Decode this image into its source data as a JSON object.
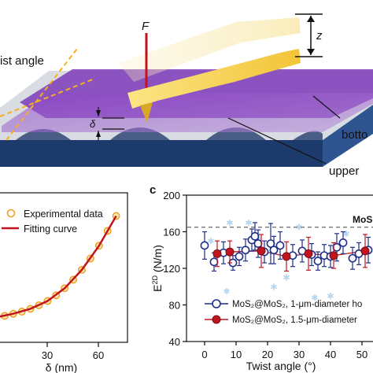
{
  "schematic": {
    "force_label": "F",
    "z_label": "z",
    "delta_label": "δ",
    "twist_label": "ist angle",
    "bottom_label": "botto",
    "upper_label": "upper"
  },
  "panel_b": {
    "legend": [
      "Experimental data",
      "Fitting curve"
    ],
    "xlabel": "δ (nm)",
    "x_ticks": [
      "30",
      "60"
    ]
  },
  "panel_c": {
    "panel_letter": "c",
    "ylabel_main": "E",
    "ylabel_sup": "2D",
    "ylabel_unit": " (N/m)",
    "xlabel": "Twist angle (°)",
    "y_ticks": [
      "200",
      "160",
      "120",
      "80",
      "40"
    ],
    "x_ticks": [
      "0",
      "10",
      "20",
      "30",
      "40",
      "50"
    ],
    "ref_label": "MoS",
    "legend_1": "MoS₂@MoS₂, 1-μm-diameter ho",
    "legend_2": "MoS₂@MoS₂, 1.5-μm-diameter"
  },
  "chart_data": [
    {
      "type": "scatter",
      "title": "",
      "xlabel": "δ (nm)",
      "ylabel": "",
      "x_ticks": [
        30,
        60
      ],
      "series": [
        {
          "name": "Experimental data",
          "x": [
            0,
            5,
            10,
            15,
            20,
            25,
            30,
            35,
            40,
            45,
            50,
            55,
            60,
            65,
            70
          ],
          "y": [
            0.02,
            0.04,
            0.07,
            0.1,
            0.14,
            0.19,
            0.25,
            0.33,
            0.43,
            0.55,
            0.69,
            0.85,
            1.03,
            1.24,
            1.45
          ]
        },
        {
          "name": "Fitting curve",
          "x": [
            0,
            10,
            20,
            30,
            40,
            50,
            60,
            70
          ],
          "y": [
            0.02,
            0.07,
            0.14,
            0.25,
            0.43,
            0.69,
            1.03,
            1.45
          ]
        }
      ]
    },
    {
      "type": "scatter",
      "title": "",
      "xlabel": "Twist angle (°)",
      "ylabel": "E2D (N/m)",
      "ylim": [
        40,
        200
      ],
      "y_ticks": [
        40,
        80,
        120,
        160,
        200
      ],
      "x_ticks": [
        0,
        10,
        20,
        30,
        40,
        50
      ],
      "reference_line": 165,
      "series": [
        {
          "name": "MoS2@MoS2, 1-μm-diameter ho",
          "x": [
            0,
            3,
            6,
            9,
            11,
            13,
            15,
            16,
            17,
            19,
            21,
            22,
            24,
            28,
            31,
            34,
            36,
            38,
            40,
            42,
            44,
            47,
            49,
            52
          ],
          "y": [
            145,
            127,
            137,
            126,
            133,
            140,
            151,
            155,
            147,
            138,
            147,
            140,
            145,
            134,
            139,
            135,
            128,
            134,
            133,
            143,
            148,
            131,
            136,
            140
          ],
          "err": [
            15,
            10,
            12,
            8,
            10,
            12,
            12,
            15,
            15,
            12,
            22,
            15,
            15,
            12,
            12,
            12,
            10,
            12,
            12,
            15,
            12,
            12,
            12,
            14
          ]
        },
        {
          "name": "MoS2@MoS2, 1.5-μm-diameter",
          "x": [
            4,
            8,
            18,
            26,
            33,
            41,
            51
          ],
          "y": [
            136,
            138,
            139,
            133,
            136,
            134,
            139
          ],
          "err": [
            14,
            12,
            18,
            16,
            18,
            14,
            18
          ]
        }
      ]
    }
  ]
}
